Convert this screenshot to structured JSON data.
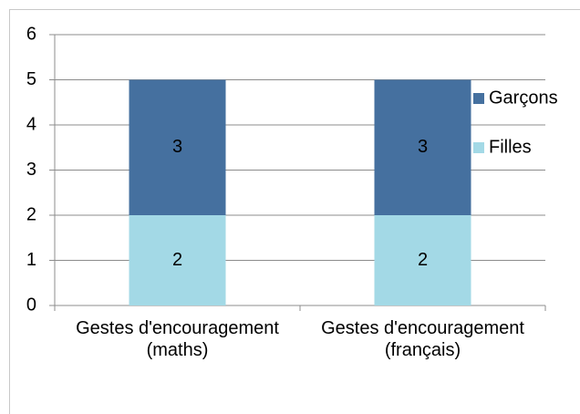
{
  "chart_data": {
    "type": "stacked_bar",
    "categories": [
      "Gestes d'encouragement (maths)",
      "Gestes d'encouragement (français)"
    ],
    "series": [
      {
        "name": "Filles",
        "color": "#a3d9e6",
        "values": [
          2,
          2
        ]
      },
      {
        "name": "Garçons",
        "color": "#45709f",
        "values": [
          3,
          3
        ]
      }
    ],
    "ylim": [
      0,
      6
    ],
    "yticks": [
      0,
      1,
      2,
      3,
      4,
      5,
      6
    ],
    "grid": true,
    "legend": "right"
  }
}
